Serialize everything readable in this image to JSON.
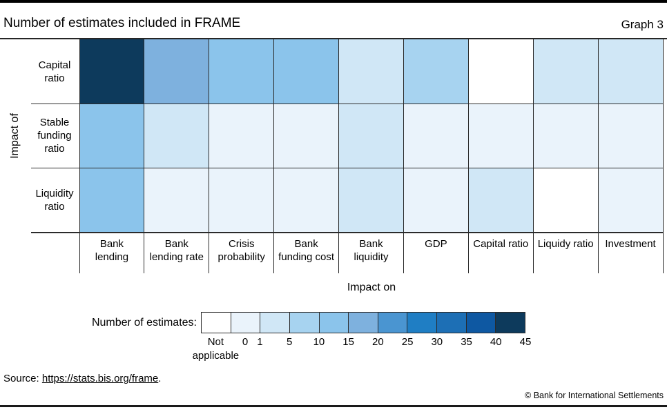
{
  "page": {
    "title": "Number of estimates included in FRAME",
    "graph_label": "Graph 3",
    "source_prefix": "Source: ",
    "source_link": "https://stats.bis.org/frame",
    "source_suffix": ".",
    "footer": "© Bank for International Settlements"
  },
  "chart_data": {
    "type": "heatmap",
    "title": "Number of estimates included in FRAME",
    "xlabel": "Impact on",
    "ylabel": "Impact of",
    "columns": [
      "Bank lending",
      "Bank lending rate",
      "Crisis probability",
      "Bank funding cost",
      "Bank liquidity",
      "GDP",
      "Capital ratio",
      "Liquidy ratio",
      "Investment"
    ],
    "rows": [
      "Capital ratio",
      "Stable funding ratio",
      "Liquidity ratio"
    ],
    "values": [
      [
        "40-45",
        "15-20",
        "10-15",
        "10-15",
        "1-5",
        "5-10",
        "NA",
        "1-5",
        "1-5"
      ],
      [
        "10-15",
        "1-5",
        "0-1",
        "0-1",
        "1-5",
        "0-1",
        "0-1",
        "0-1",
        "0-1"
      ],
      [
        "10-15",
        "0-1",
        "0-1",
        "0-1",
        "1-5",
        "0-1",
        "1-5",
        "NA",
        "0-1"
      ]
    ],
    "bin_colors": {
      "NA": "#ffffff",
      "0-1": "#eaf3fb",
      "1-5": "#d0e7f6",
      "5-10": "#a7d3f0",
      "10-15": "#8bc4eb",
      "15-20": "#7eb1de",
      "20-25": "#4a95d1",
      "25-30": "#1f7ec4",
      "30-35": "#1d6fb5",
      "35-40": "#0e58a2",
      "40-45": "#0d3a5c"
    },
    "legend": {
      "label": "Number of estimates:",
      "swatch_bins": [
        "NA",
        "0-1",
        "1-5",
        "5-10",
        "10-15",
        "15-20",
        "20-25",
        "25-30",
        "30-35",
        "35-40",
        "40-45"
      ],
      "na_label": "Not\napplicable",
      "zero_label": "0",
      "boundary_labels": [
        "1",
        "5",
        "10",
        "15",
        "20",
        "25",
        "30",
        "35",
        "40",
        "45"
      ]
    }
  }
}
